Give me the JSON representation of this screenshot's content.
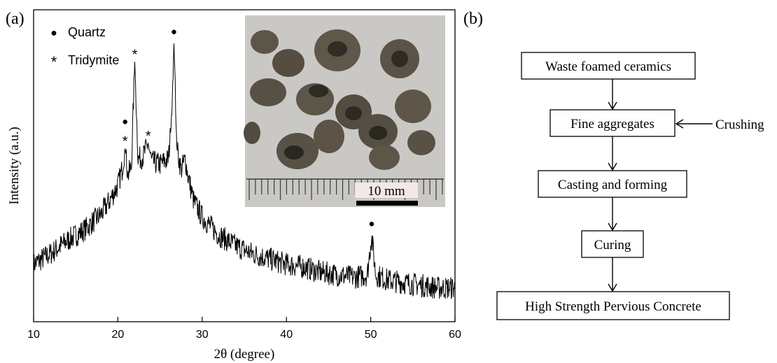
{
  "panel_a": {
    "label": "(a)",
    "legend": [
      {
        "marker": "●",
        "label": "Quartz"
      },
      {
        "marker": "*",
        "label": "Tridymite"
      }
    ],
    "inset": {
      "scale_label": "10 mm"
    }
  },
  "panel_b": {
    "label": "(b)",
    "steps": [
      "Waste foamed ceramics",
      "Fine aggregates",
      "Casting and forming",
      "Curing",
      "High Strength Pervious Concrete"
    ],
    "side_input": "Crushing"
  },
  "chart_data": {
    "type": "line",
    "xlabel": "2θ (degree)",
    "ylabel": "Intensity (a.u.)",
    "xlim": [
      10,
      60
    ],
    "xticks": [
      10,
      20,
      30,
      40,
      50,
      60
    ],
    "y_ticks_shown": false,
    "series": [
      {
        "name": "",
        "color": "#000000",
        "x": [
          10,
          12,
          14,
          16,
          18,
          19,
          20,
          20.5,
          20.85,
          21.2,
          21.6,
          22.0,
          22.4,
          23.0,
          23.6,
          24.0,
          25.0,
          26.0,
          26.3,
          26.65,
          27.0,
          27.5,
          28.0,
          28.3,
          29.0,
          30,
          32,
          34,
          36,
          38,
          40,
          42,
          44,
          46,
          48,
          49.6,
          50.1,
          50.6,
          52,
          54,
          56,
          58,
          60
        ],
        "y": [
          16,
          20,
          25,
          29,
          35,
          40,
          46,
          52,
          60,
          50,
          53,
          93,
          56,
          57,
          62,
          55,
          54,
          56,
          68,
          100,
          60,
          52,
          56,
          50,
          40,
          34,
          27,
          23,
          20,
          18,
          16,
          15,
          13,
          12,
          11,
          12,
          27,
          12,
          10,
          9,
          8,
          7,
          7
        ]
      }
    ],
    "peak_annotations": [
      {
        "x": 20.85,
        "phases": [
          "Quartz",
          "Tridymite"
        ]
      },
      {
        "x": 22.0,
        "phases": [
          "Tridymite"
        ]
      },
      {
        "x": 23.6,
        "phases": [
          "Tridymite"
        ]
      },
      {
        "x": 26.65,
        "phases": [
          "Quartz"
        ]
      },
      {
        "x": 50.1,
        "phases": [
          "Quartz"
        ]
      }
    ]
  },
  "colors": {
    "line": "#000000",
    "inset_background": "#c9c8c4",
    "aggregate": "#5c5548",
    "ruler": "#3a3a3a"
  }
}
